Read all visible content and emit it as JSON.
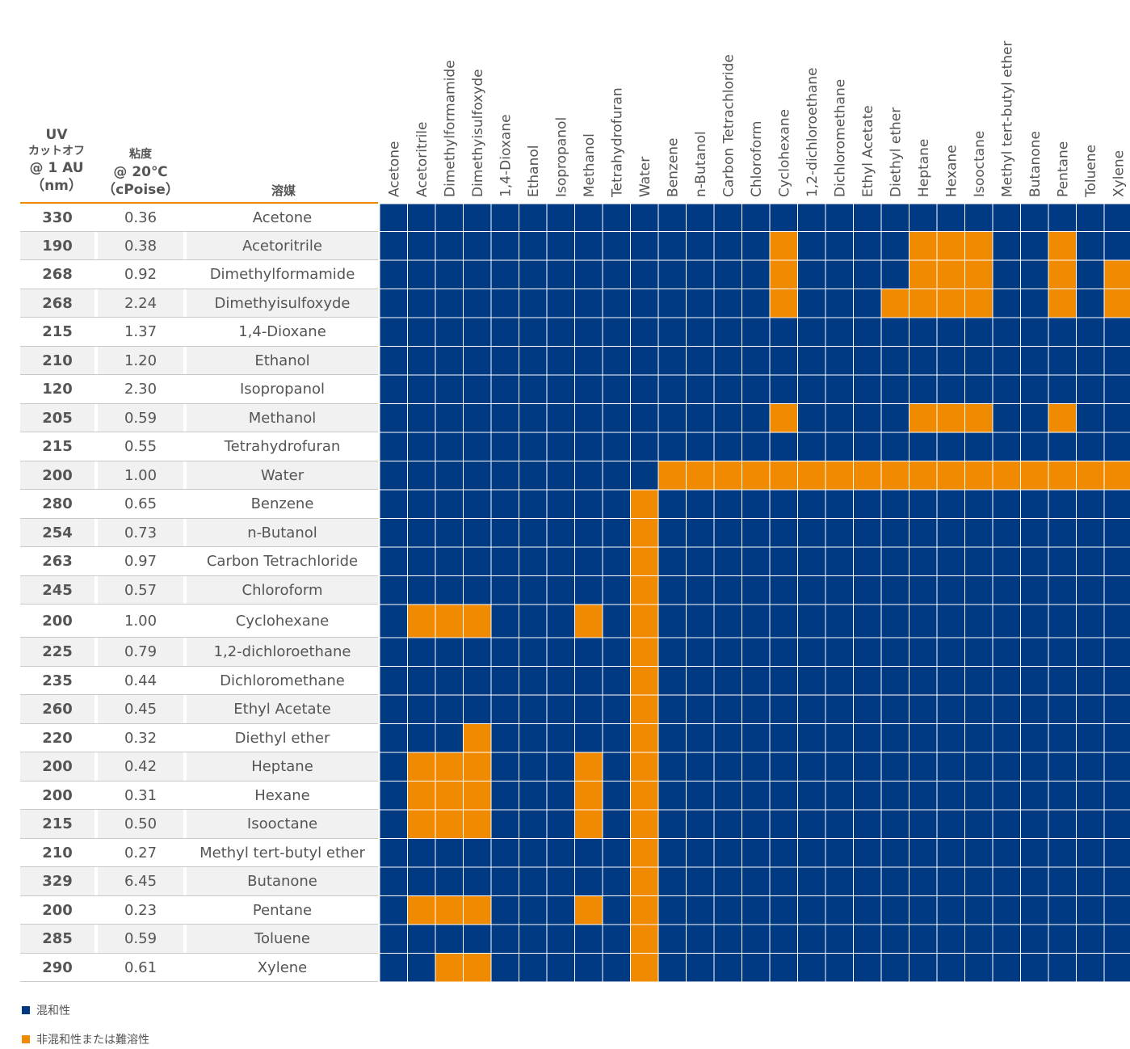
{
  "header": {
    "uv_line1": "UV",
    "uv_line2": "カットオフ",
    "uv_line3": "@ 1 AU",
    "uv_line4": "（nm）",
    "visc_line1": "粘度",
    "visc_line2": "@ 20℃",
    "visc_line3": "（cPoise）",
    "solvent": "溶媒"
  },
  "colors": {
    "miscible": "#003a82",
    "immiscible": "#f08a00",
    "header_rule": "#f08a00"
  },
  "rows": [
    {
      "uv": "330",
      "viscosity": "0.36",
      "solvent": "Acetone"
    },
    {
      "uv": "190",
      "viscosity": "0.38",
      "solvent": "Acetoritrile"
    },
    {
      "uv": "268",
      "viscosity": "0.92",
      "solvent": "Dimethylformamide"
    },
    {
      "uv": "268",
      "viscosity": "2.24",
      "solvent": "Dimethyisulfoxyde"
    },
    {
      "uv": "215",
      "viscosity": "1.37",
      "solvent": "1,4-Dioxane"
    },
    {
      "uv": "210",
      "viscosity": "1.20",
      "solvent": "Ethanol"
    },
    {
      "uv": "120",
      "viscosity": "2.30",
      "solvent": "Isopropanol"
    },
    {
      "uv": "205",
      "viscosity": "0.59",
      "solvent": "Methanol"
    },
    {
      "uv": "215",
      "viscosity": "0.55",
      "solvent": "Tetrahydrofuran"
    },
    {
      "uv": "200",
      "viscosity": "1.00",
      "solvent": "Water"
    },
    {
      "uv": "280",
      "viscosity": "0.65",
      "solvent": "Benzene"
    },
    {
      "uv": "254",
      "viscosity": "0.73",
      "solvent": "n-Butanol"
    },
    {
      "uv": "263",
      "viscosity": "0.97",
      "solvent": "Carbon Tetrachloride"
    },
    {
      "uv": "245",
      "viscosity": "0.57",
      "solvent": "Chloroform"
    },
    {
      "uv": "200",
      "viscosity": "1.00",
      "solvent": "Cyclohexane"
    },
    {
      "uv": "225",
      "viscosity": "0.79",
      "solvent": "1,2-dichloroethane"
    },
    {
      "uv": "235",
      "viscosity": "0.44",
      "solvent": "Dichloromethane"
    },
    {
      "uv": "260",
      "viscosity": "0.45",
      "solvent": "Ethyl Acetate"
    },
    {
      "uv": "220",
      "viscosity": "0.32",
      "solvent": "Diethyl ether"
    },
    {
      "uv": "200",
      "viscosity": "0.42",
      "solvent": "Heptane"
    },
    {
      "uv": "200",
      "viscosity": "0.31",
      "solvent": "Hexane"
    },
    {
      "uv": "215",
      "viscosity": "0.50",
      "solvent": "Isooctane"
    },
    {
      "uv": "210",
      "viscosity": "0.27",
      "solvent": "Methyl tert-butyl ether"
    },
    {
      "uv": "329",
      "viscosity": "6.45",
      "solvent": "Butanone"
    },
    {
      "uv": "200",
      "viscosity": "0.23",
      "solvent": "Pentane"
    },
    {
      "uv": "285",
      "viscosity": "0.59",
      "solvent": "Toluene"
    },
    {
      "uv": "290",
      "viscosity": "0.61",
      "solvent": "Xylene"
    }
  ],
  "chart_data": {
    "type": "heatmap",
    "columns": [
      "Acetone",
      "Acetoritrile",
      "Dimethylformamide",
      "Dimethyisulfoxyde",
      "1,4-Dioxane",
      "Ethanol",
      "Isopropanol",
      "Methanol",
      "Tetrahydrofuran",
      "Water",
      "Benzene",
      "n-Butanol",
      "Carbon Tetrachloride",
      "Chloroform",
      "Cyclohexane",
      "1,2-dichloroethane",
      "Dichloromethane",
      "Ethyl Acetate",
      "Diethyl ether",
      "Heptane",
      "Hexane",
      "Isooctane",
      "Methyl tert-butyl ether",
      "Butanone",
      "Pentane",
      "Toluene",
      "Xylene"
    ],
    "rows": [
      "Acetone",
      "Acetoritrile",
      "Dimethylformamide",
      "Dimethyisulfoxyde",
      "1,4-Dioxane",
      "Ethanol",
      "Isopropanol",
      "Methanol",
      "Tetrahydrofuran",
      "Water",
      "Benzene",
      "n-Butanol",
      "Carbon Tetrachloride",
      "Chloroform",
      "Cyclohexane",
      "1,2-dichloroethane",
      "Dichloromethane",
      "Ethyl Acetate",
      "Diethyl ether",
      "Heptane",
      "Hexane",
      "Isooctane",
      "Methyl tert-butyl ether",
      "Butanone",
      "Pentane",
      "Toluene",
      "Xylene"
    ],
    "value_meaning": {
      "0": "混和性",
      "1": "非混和性または難溶性"
    },
    "matrix": [
      [
        0,
        0,
        0,
        0,
        0,
        0,
        0,
        0,
        0,
        0,
        0,
        0,
        0,
        0,
        0,
        0,
        0,
        0,
        0,
        0,
        0,
        0,
        0,
        0,
        0,
        0,
        0
      ],
      [
        0,
        0,
        0,
        0,
        0,
        0,
        0,
        0,
        0,
        0,
        0,
        0,
        0,
        0,
        1,
        0,
        0,
        0,
        0,
        1,
        1,
        1,
        0,
        0,
        1,
        0,
        0
      ],
      [
        0,
        0,
        0,
        0,
        0,
        0,
        0,
        0,
        0,
        0,
        0,
        0,
        0,
        0,
        1,
        0,
        0,
        0,
        0,
        1,
        1,
        1,
        0,
        0,
        1,
        0,
        1
      ],
      [
        0,
        0,
        0,
        0,
        0,
        0,
        0,
        0,
        0,
        0,
        0,
        0,
        0,
        0,
        1,
        0,
        0,
        0,
        1,
        1,
        1,
        1,
        0,
        0,
        1,
        0,
        1
      ],
      [
        0,
        0,
        0,
        0,
        0,
        0,
        0,
        0,
        0,
        0,
        0,
        0,
        0,
        0,
        0,
        0,
        0,
        0,
        0,
        0,
        0,
        0,
        0,
        0,
        0,
        0,
        0
      ],
      [
        0,
        0,
        0,
        0,
        0,
        0,
        0,
        0,
        0,
        0,
        0,
        0,
        0,
        0,
        0,
        0,
        0,
        0,
        0,
        0,
        0,
        0,
        0,
        0,
        0,
        0,
        0
      ],
      [
        0,
        0,
        0,
        0,
        0,
        0,
        0,
        0,
        0,
        0,
        0,
        0,
        0,
        0,
        0,
        0,
        0,
        0,
        0,
        0,
        0,
        0,
        0,
        0,
        0,
        0,
        0
      ],
      [
        0,
        0,
        0,
        0,
        0,
        0,
        0,
        0,
        0,
        0,
        0,
        0,
        0,
        0,
        1,
        0,
        0,
        0,
        0,
        1,
        1,
        1,
        0,
        0,
        1,
        0,
        0
      ],
      [
        0,
        0,
        0,
        0,
        0,
        0,
        0,
        0,
        0,
        0,
        0,
        0,
        0,
        0,
        0,
        0,
        0,
        0,
        0,
        0,
        0,
        0,
        0,
        0,
        0,
        0,
        0
      ],
      [
        0,
        0,
        0,
        0,
        0,
        0,
        0,
        0,
        0,
        0,
        1,
        1,
        1,
        1,
        1,
        1,
        1,
        1,
        1,
        1,
        1,
        1,
        1,
        1,
        1,
        1,
        1
      ],
      [
        0,
        0,
        0,
        0,
        0,
        0,
        0,
        0,
        0,
        1,
        0,
        0,
        0,
        0,
        0,
        0,
        0,
        0,
        0,
        0,
        0,
        0,
        0,
        0,
        0,
        0,
        0
      ],
      [
        0,
        0,
        0,
        0,
        0,
        0,
        0,
        0,
        0,
        1,
        0,
        0,
        0,
        0,
        0,
        0,
        0,
        0,
        0,
        0,
        0,
        0,
        0,
        0,
        0,
        0,
        0
      ],
      [
        0,
        0,
        0,
        0,
        0,
        0,
        0,
        0,
        0,
        1,
        0,
        0,
        0,
        0,
        0,
        0,
        0,
        0,
        0,
        0,
        0,
        0,
        0,
        0,
        0,
        0,
        0
      ],
      [
        0,
        0,
        0,
        0,
        0,
        0,
        0,
        0,
        0,
        1,
        0,
        0,
        0,
        0,
        0,
        0,
        0,
        0,
        0,
        0,
        0,
        0,
        0,
        0,
        0,
        0,
        0
      ],
      [
        0,
        1,
        1,
        1,
        0,
        0,
        0,
        1,
        0,
        1,
        0,
        0,
        0,
        0,
        0,
        0,
        0,
        0,
        0,
        0,
        0,
        0,
        0,
        0,
        0,
        0,
        0
      ],
      [
        0,
        0,
        0,
        0,
        0,
        0,
        0,
        0,
        0,
        1,
        0,
        0,
        0,
        0,
        0,
        0,
        0,
        0,
        0,
        0,
        0,
        0,
        0,
        0,
        0,
        0,
        0
      ],
      [
        0,
        0,
        0,
        0,
        0,
        0,
        0,
        0,
        0,
        1,
        0,
        0,
        0,
        0,
        0,
        0,
        0,
        0,
        0,
        0,
        0,
        0,
        0,
        0,
        0,
        0,
        0
      ],
      [
        0,
        0,
        0,
        0,
        0,
        0,
        0,
        0,
        0,
        1,
        0,
        0,
        0,
        0,
        0,
        0,
        0,
        0,
        0,
        0,
        0,
        0,
        0,
        0,
        0,
        0,
        0
      ],
      [
        0,
        0,
        0,
        1,
        0,
        0,
        0,
        0,
        0,
        1,
        0,
        0,
        0,
        0,
        0,
        0,
        0,
        0,
        0,
        0,
        0,
        0,
        0,
        0,
        0,
        0,
        0
      ],
      [
        0,
        1,
        1,
        1,
        0,
        0,
        0,
        1,
        0,
        1,
        0,
        0,
        0,
        0,
        0,
        0,
        0,
        0,
        0,
        0,
        0,
        0,
        0,
        0,
        0,
        0,
        0
      ],
      [
        0,
        1,
        1,
        1,
        0,
        0,
        0,
        1,
        0,
        1,
        0,
        0,
        0,
        0,
        0,
        0,
        0,
        0,
        0,
        0,
        0,
        0,
        0,
        0,
        0,
        0,
        0
      ],
      [
        0,
        1,
        1,
        1,
        0,
        0,
        0,
        1,
        0,
        1,
        0,
        0,
        0,
        0,
        0,
        0,
        0,
        0,
        0,
        0,
        0,
        0,
        0,
        0,
        0,
        0,
        0
      ],
      [
        0,
        0,
        0,
        0,
        0,
        0,
        0,
        0,
        0,
        1,
        0,
        0,
        0,
        0,
        0,
        0,
        0,
        0,
        0,
        0,
        0,
        0,
        0,
        0,
        0,
        0,
        0
      ],
      [
        0,
        0,
        0,
        0,
        0,
        0,
        0,
        0,
        0,
        1,
        0,
        0,
        0,
        0,
        0,
        0,
        0,
        0,
        0,
        0,
        0,
        0,
        0,
        0,
        0,
        0,
        0
      ],
      [
        0,
        1,
        1,
        1,
        0,
        0,
        0,
        1,
        0,
        1,
        0,
        0,
        0,
        0,
        0,
        0,
        0,
        0,
        0,
        0,
        0,
        0,
        0,
        0,
        0,
        0,
        0
      ],
      [
        0,
        0,
        0,
        0,
        0,
        0,
        0,
        0,
        0,
        1,
        0,
        0,
        0,
        0,
        0,
        0,
        0,
        0,
        0,
        0,
        0,
        0,
        0,
        0,
        0,
        0,
        0
      ],
      [
        0,
        0,
        1,
        1,
        0,
        0,
        0,
        0,
        0,
        1,
        0,
        0,
        0,
        0,
        0,
        0,
        0,
        0,
        0,
        0,
        0,
        0,
        0,
        0,
        0,
        0,
        0
      ]
    ]
  },
  "legend": {
    "miscible_label": "混和性",
    "immiscible_label": "非混和性または難溶性"
  }
}
